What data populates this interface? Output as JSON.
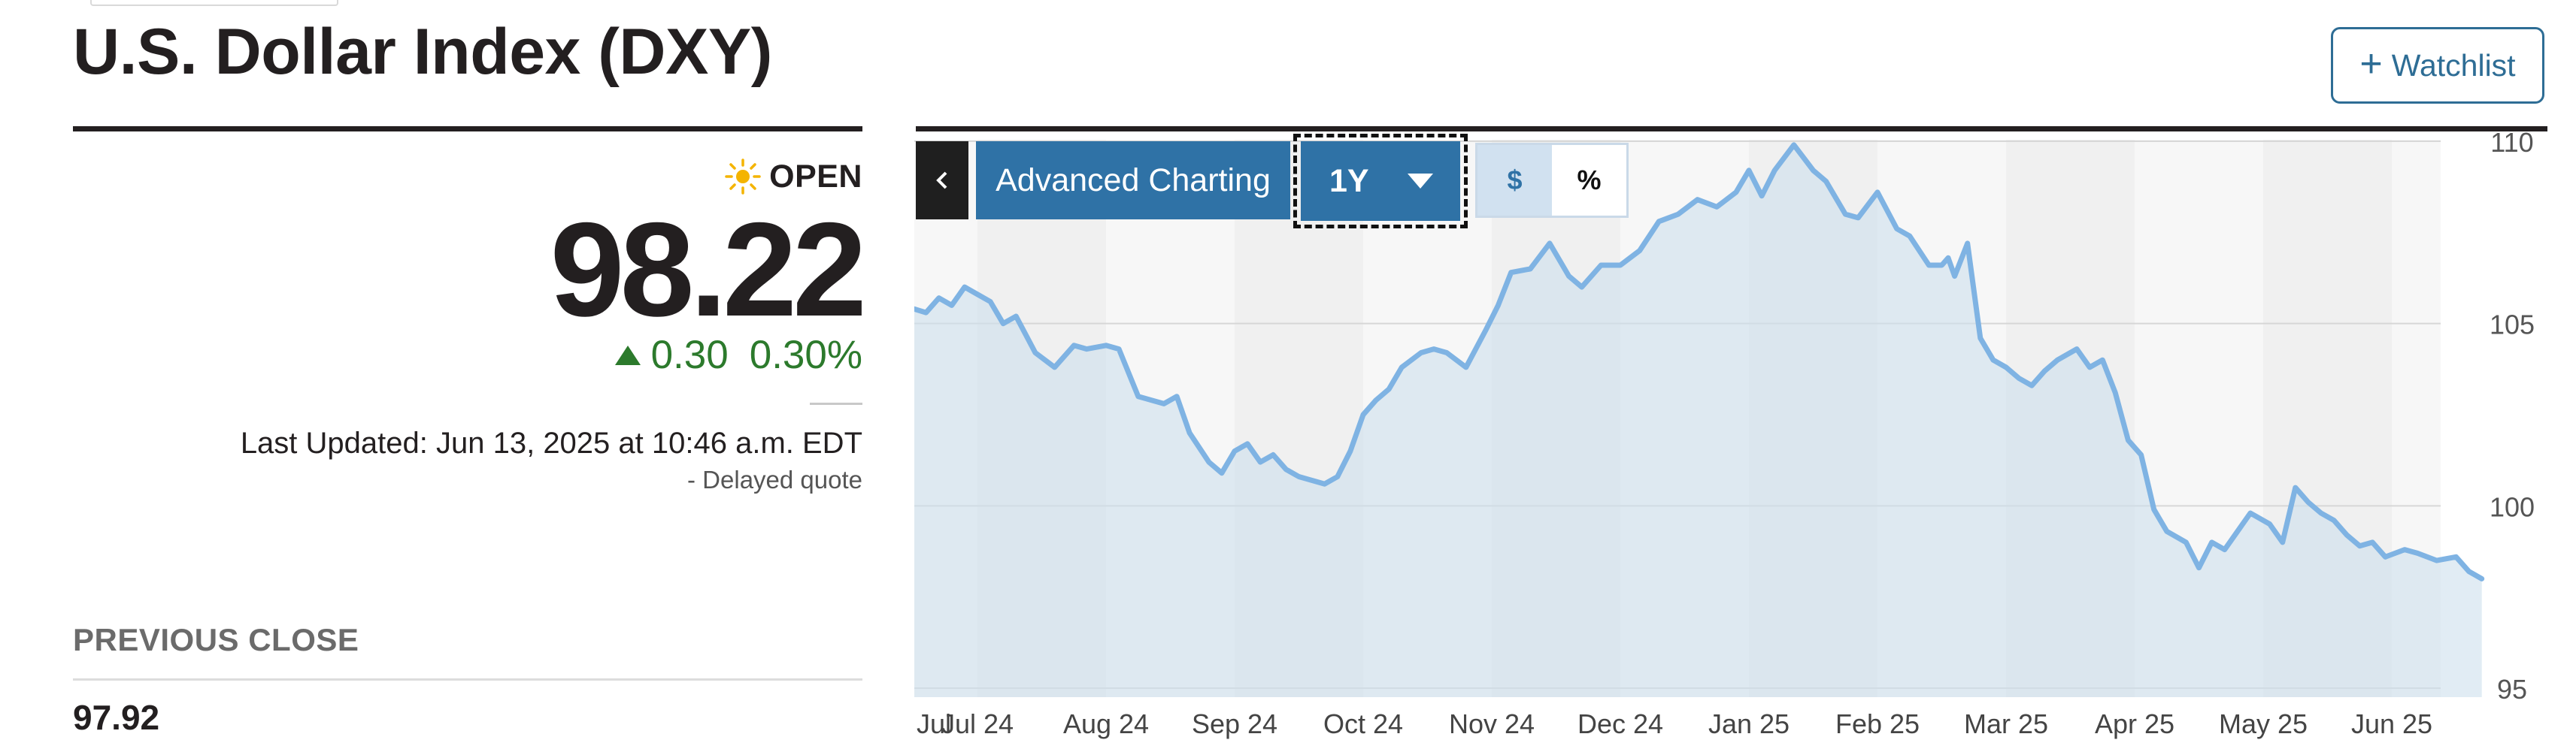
{
  "header": {
    "title": "U.S. Dollar Index (DXY)",
    "watchlist_label": "Watchlist"
  },
  "quote": {
    "status": "OPEN",
    "price": "98.22",
    "change": "0.30",
    "change_percent": "0.30%",
    "last_updated": "Last Updated: Jun 13, 2025 at 10:46 a.m. EDT",
    "delayed_note": "-  Delayed quote",
    "previous_close_label": "PREVIOUS CLOSE",
    "previous_close_value": "97.92"
  },
  "toolbar": {
    "back_icon": "chevron-left-icon",
    "advanced_label": "Advanced Charting",
    "range_label": "1Y",
    "mode_dollar": "$",
    "mode_percent": "%"
  },
  "colors": {
    "accent": "#2f72a6",
    "positive": "#2c7a2c",
    "line": "#7fb3e3",
    "area": "#dfe9f1"
  },
  "chart_data": {
    "type": "area",
    "x_labels": [
      "Jul 24",
      "Aug 24",
      "Sep 24",
      "Oct 24",
      "Nov 24",
      "Dec 24",
      "Jan 25",
      "Feb 25",
      "Mar 25",
      "Apr 25",
      "May 25",
      "Jun 25"
    ],
    "x_label_extra": "Jul",
    "y_ticks": [
      95,
      100,
      105,
      110
    ],
    "ylim": [
      95,
      110
    ],
    "xlim": [
      0,
      11.7
    ],
    "grid": true,
    "series": [
      {
        "x": [
          -0.5,
          -0.4,
          -0.3,
          -0.2,
          -0.1,
          0,
          0.1,
          0.2,
          0.3,
          0.45,
          0.6,
          0.75,
          0.85,
          1.0,
          1.1,
          1.25,
          1.45,
          1.55,
          1.65,
          1.8,
          1.9,
          2.0,
          2.1,
          2.2,
          2.3,
          2.4,
          2.5,
          2.6,
          2.7,
          2.8,
          2.9,
          3.0,
          3.1,
          3.2,
          3.3,
          3.45,
          3.55,
          3.65,
          3.8,
          3.95,
          4.05,
          4.15,
          4.3,
          4.45,
          4.6,
          4.7,
          4.85,
          5.0,
          5.15,
          5.3,
          5.45,
          5.6,
          5.75,
          5.9,
          6.0,
          6.1,
          6.2,
          6.35,
          6.5,
          6.6,
          6.75,
          6.85,
          7.0,
          7.15,
          7.25,
          7.4,
          7.5,
          7.55,
          7.6,
          7.7,
          7.8,
          7.9,
          8.0,
          8.1,
          8.2,
          8.3,
          8.4,
          8.55,
          8.65,
          8.75,
          8.85,
          8.95,
          9.05,
          9.15,
          9.25,
          9.4,
          9.5,
          9.6,
          9.7,
          9.8,
          9.9,
          10.05,
          10.15,
          10.25,
          10.35,
          10.45,
          10.55,
          10.65,
          10.75,
          10.85,
          10.95,
          11.1,
          11.2,
          11.35,
          11.5,
          11.6,
          11.7
        ],
        "values": [
          105.4,
          105.3,
          105.7,
          105.5,
          106.0,
          105.8,
          105.6,
          105.0,
          105.2,
          104.2,
          103.8,
          104.4,
          104.3,
          104.4,
          104.3,
          103.0,
          102.8,
          103.0,
          102.0,
          101.2,
          100.9,
          101.5,
          101.7,
          101.2,
          101.4,
          101.0,
          100.8,
          100.7,
          100.6,
          100.8,
          101.5,
          102.5,
          102.9,
          103.2,
          103.8,
          104.2,
          104.3,
          104.2,
          103.8,
          104.8,
          105.5,
          106.4,
          106.5,
          107.2,
          106.3,
          106.0,
          106.6,
          106.6,
          107.0,
          107.8,
          108.0,
          108.4,
          108.2,
          108.6,
          109.2,
          108.5,
          109.2,
          109.9,
          109.2,
          108.9,
          108.0,
          107.9,
          108.6,
          107.6,
          107.4,
          106.6,
          106.6,
          106.8,
          106.3,
          107.2,
          104.6,
          104.0,
          103.8,
          103.5,
          103.3,
          103.7,
          104.0,
          104.3,
          103.8,
          104.0,
          103.1,
          101.8,
          101.4,
          99.9,
          99.3,
          99.0,
          98.3,
          99.0,
          98.8,
          99.3,
          99.8,
          99.5,
          99.0,
          100.5,
          100.1,
          99.8,
          99.6,
          99.2,
          98.9,
          99.0,
          98.6,
          98.8,
          98.7,
          98.5,
          98.6,
          98.2,
          98.0
        ]
      }
    ]
  }
}
